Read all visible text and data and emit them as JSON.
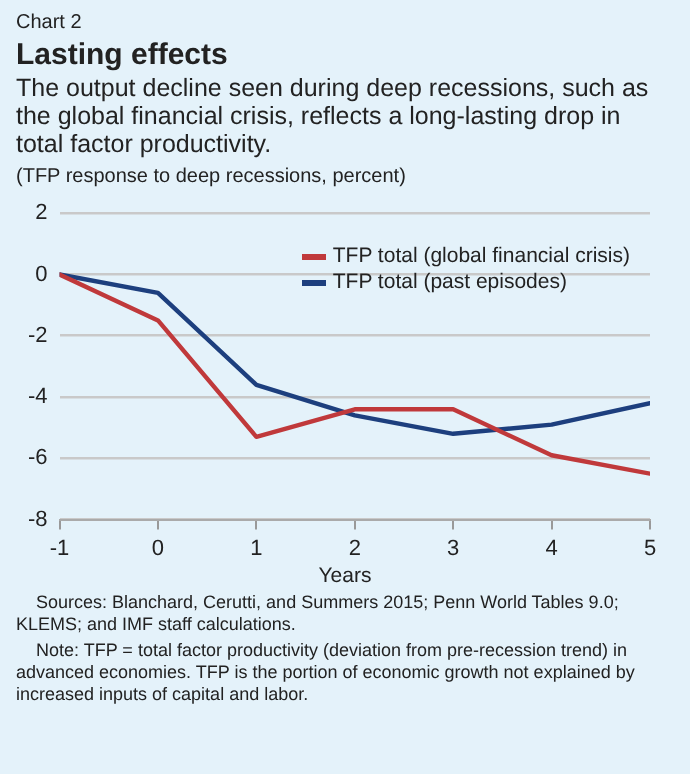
{
  "chart_data": {
    "type": "line",
    "title": "Lasting effects",
    "subtitle": "The output decline seen during deep recessions, such as the global financial crisis, reflects a long-lasting drop in total factor productivity.",
    "ylabel": "(TFP response to deep recessions, percent)",
    "xlabel": "Years",
    "x": [
      -1,
      0,
      1,
      2,
      3,
      4,
      5
    ],
    "series": [
      {
        "name": "TFP total (global financial crisis)",
        "color": "#c0393b",
        "values": [
          0,
          -1.5,
          -5.3,
          -4.4,
          -4.4,
          -5.9,
          -6.5
        ]
      },
      {
        "name": "TFP total (past episodes)",
        "color": "#1d3f7e",
        "values": [
          0,
          -0.6,
          -3.6,
          -4.6,
          -5.2,
          -4.9,
          -4.2
        ]
      }
    ],
    "xlim": [
      -1,
      5
    ],
    "xticks": [
      -1,
      0,
      1,
      2,
      3,
      4,
      5
    ],
    "ylim": [
      -8,
      2
    ],
    "yticks": [
      -8,
      -6,
      -4,
      -2,
      0,
      2
    ],
    "grid": "y",
    "legend": "top right",
    "marker": "none",
    "line_style": "solid",
    "annotations": [
      "Chart 2",
      "Sources: Blanchard, Cerutti, and Summers 2015; Penn World Tables 9.0; KLEMS; and IMF staff calculations.",
      "Note: TFP = total factor productivity (deviation from pre-recession trend) in advanced economies. TFP is the portion of economic growth not explained by increased inputs of capital and labor."
    ]
  }
}
